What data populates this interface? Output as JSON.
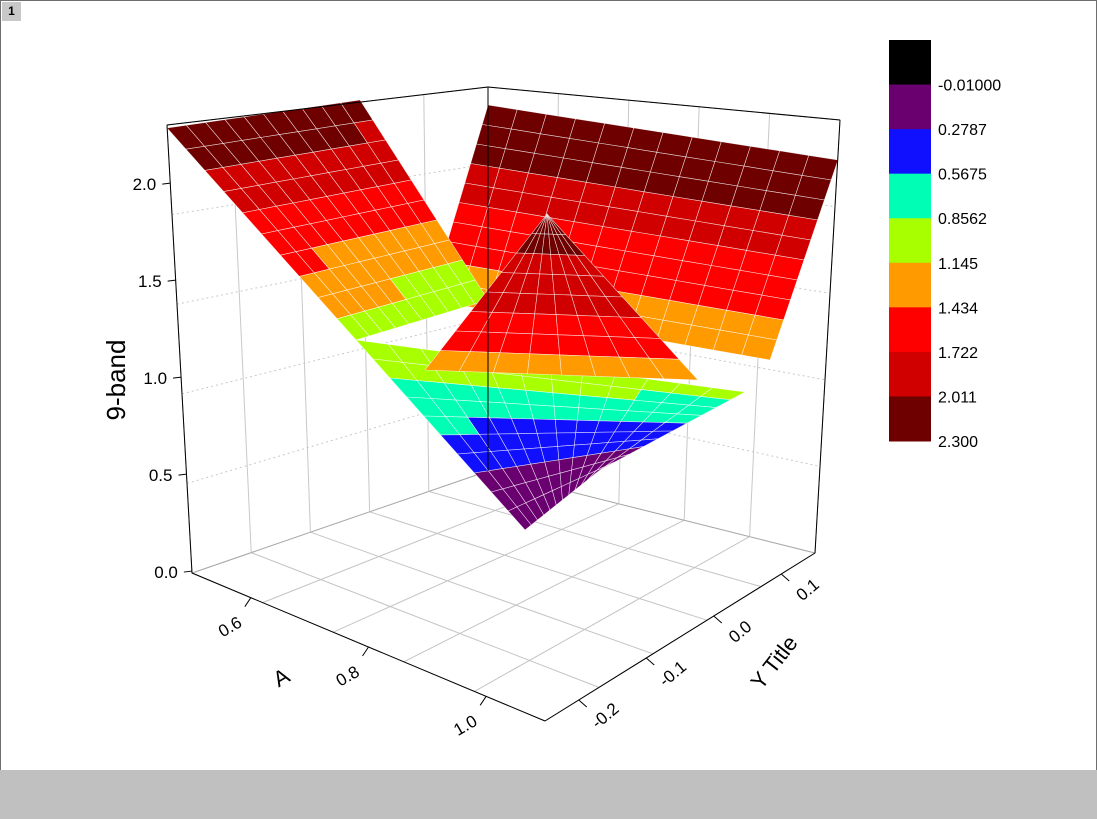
{
  "window": {
    "page_tab_label": "1"
  },
  "chart_data": {
    "type": "surface3d",
    "title": "",
    "zlabel": "9-band",
    "xlabel": "A",
    "ylabel": "Y Title",
    "z_ticks": [
      "0.0",
      "0.5",
      "1.0",
      "1.5",
      "2.0"
    ],
    "x_ticks": [
      "0.6",
      "0.8",
      "1.0"
    ],
    "y_ticks": [
      "0.1",
      "0.0",
      "-0.1",
      "-0.2"
    ],
    "zlim": [
      -0.01,
      2.3
    ],
    "x_range": [
      0.5,
      1.1
    ],
    "y_range": [
      -0.25,
      0.15
    ],
    "surface": {
      "shape": "V-shaped valley surface with minimum near 0 and rims rising to about 2.3",
      "min_z": 0.0,
      "max_z": 2.3,
      "corner_values": {
        "left_back": 2.3,
        "right_back": 2.3,
        "front_tip": 0.0,
        "center_peak": 2.3
      }
    },
    "colormap_levels": [
      "-0.01000",
      "0.2787",
      "0.5675",
      "0.8562",
      "1.145",
      "1.434",
      "1.722",
      "2.011",
      "2.300"
    ],
    "colormap_colors": [
      "#000000",
      "#6a0070",
      "#1010ff",
      "#00ffb4",
      "#a8ff00",
      "#ff9a00",
      "#ff0000",
      "#d00000",
      "#6e0000"
    ],
    "legend_position": "top-right",
    "grid": true
  }
}
